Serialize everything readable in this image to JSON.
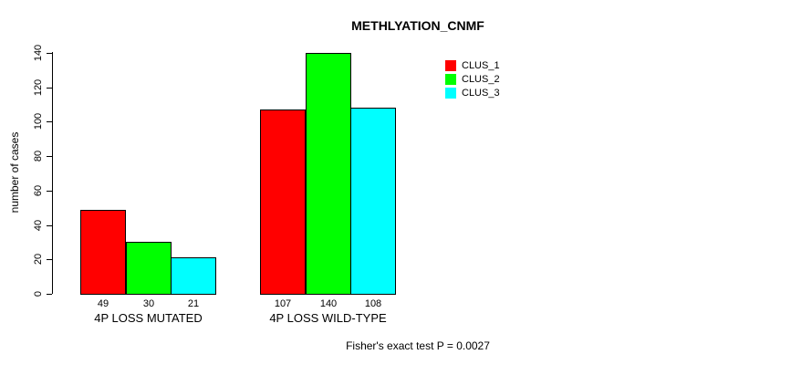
{
  "chart_data": {
    "type": "bar",
    "title": "METHLYATION_CNMF",
    "xlabel": "",
    "ylabel": "number of cases",
    "ylim": [
      0,
      140
    ],
    "yticks": [
      0,
      20,
      40,
      60,
      80,
      100,
      120,
      140
    ],
    "grid": false,
    "legend_position": "top-right",
    "categories": [
      "4P LOSS MUTATED",
      "4P LOSS WILD-TYPE"
    ],
    "series": [
      {
        "name": "CLUS_1",
        "color": "#FF0000",
        "values": [
          49,
          107
        ]
      },
      {
        "name": "CLUS_2",
        "color": "#00FF00",
        "values": [
          30,
          140
        ]
      },
      {
        "name": "CLUS_3",
        "color": "#00FFFF",
        "values": [
          21,
          108
        ]
      }
    ],
    "bar_value_labels": [
      [
        "49",
        "30",
        "21"
      ],
      [
        "107",
        "140",
        "108"
      ]
    ],
    "annotation": "Fisher's exact test P = 0.0027"
  }
}
